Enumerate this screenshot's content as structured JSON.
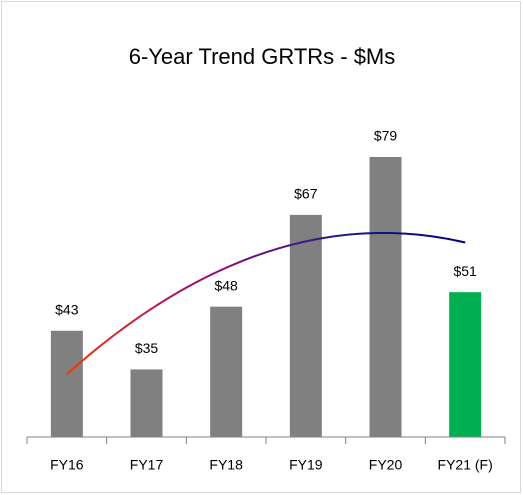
{
  "chart_data": {
    "type": "bar",
    "title": "6-Year Trend GRTRs - $Ms",
    "categories": [
      "FY16",
      "FY17",
      "FY18",
      "FY19",
      "FY20",
      "FY21 (F)"
    ],
    "values": [
      43,
      35,
      48,
      67,
      79,
      51
    ],
    "value_labels": [
      "$43",
      "$35",
      "$48",
      "$67",
      "$79",
      "$51"
    ],
    "colors": [
      "#808080",
      "#808080",
      "#808080",
      "#808080",
      "#808080",
      "#00b050"
    ],
    "ylim": [
      21,
      85
    ],
    "trendline": "polynomial"
  }
}
